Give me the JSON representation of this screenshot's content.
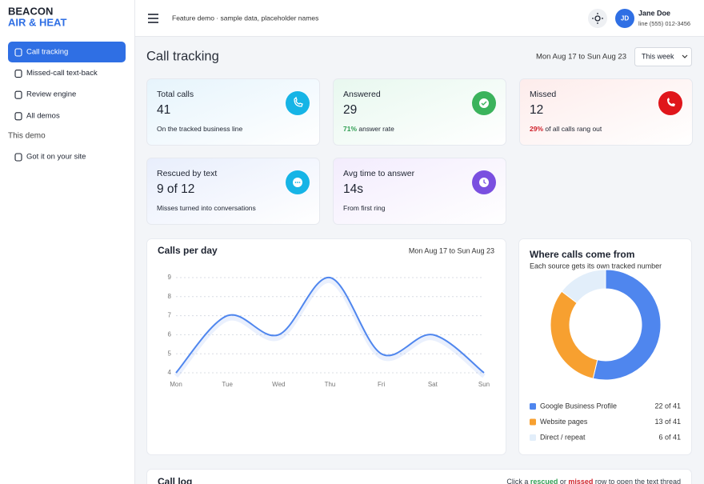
{
  "brand": {
    "line1": "BEACON",
    "line2": "AIR & HEAT"
  },
  "nav": [
    {
      "label": "Call tracking",
      "active": true
    },
    {
      "label": "Missed-call text-back",
      "active": false
    },
    {
      "label": "Review engine",
      "active": false
    },
    {
      "label": "All demos",
      "active": false
    }
  ],
  "nav_section": "This demo",
  "nav_section_items": [
    {
      "label": "Got it on your site",
      "active": false
    }
  ],
  "topbar": {
    "note": "Feature demo · sample data, placeholder names",
    "user": {
      "initials": "JD",
      "name": "Jane Doe",
      "line": "line (555) 012-3456"
    }
  },
  "page": {
    "title": "Call tracking",
    "range": "Mon Aug 17 to Sun Aug 23",
    "period": "This week"
  },
  "stats": [
    {
      "label": "Total calls",
      "value": 41,
      "note": "On the tracked business line",
      "color": "#16b4e6",
      "tint": "#e6f4fc"
    },
    {
      "label": "Answered",
      "value": 29,
      "pct": "71%",
      "pct_color": "#2f9e52",
      "note": "answer rate",
      "color": "#3bb35c",
      "tint": "#e8f8ef"
    },
    {
      "label": "Missed",
      "value": 12,
      "pct": "29%",
      "pct_color": "#d0202a",
      "note": "of all calls rang out",
      "color": "#e0161b",
      "tint": "#fdeceb"
    },
    {
      "label": "Rescued by text",
      "value": "9 of 12",
      "note": "Misses turned into conversations",
      "color": "#16b4e6",
      "tint": "#e8eefc"
    },
    {
      "label": "Avg time to answer",
      "value": "14s",
      "note": "From first ring",
      "color": "#7a4fe0",
      "tint": "#f3ecfd"
    }
  ],
  "chart_data": [
    {
      "type": "line",
      "title": "Calls per day",
      "subtitle": "Mon Aug 17 to Sun Aug 23",
      "categories": [
        "Mon",
        "Tue",
        "Wed",
        "Thu",
        "Fri",
        "Sat",
        "Sun"
      ],
      "values": [
        4,
        7,
        6,
        9,
        5,
        6,
        4
      ],
      "color": "#4f86ee",
      "ylim": [
        4,
        9
      ],
      "yticks": [
        4,
        5,
        6,
        7,
        8,
        9
      ],
      "grid": true
    },
    {
      "type": "donut",
      "title": "Where calls come from",
      "subtitle": "Each source gets its own tracked number",
      "categories": [
        "Google Business Profile",
        "Website pages",
        "Direct / repeat"
      ],
      "values": [
        22,
        13,
        6
      ],
      "value_labels": [
        "22 of 41",
        "13 of 41",
        "6 of 41"
      ],
      "colors": [
        "#4f86ee",
        "#f7a030",
        "#e2eefa"
      ]
    }
  ],
  "call_log": {
    "title": "Call log",
    "hint": [
      {
        "text": "Click a ",
        "color": "#333a45",
        "bold": false
      },
      {
        "text": "rescued",
        "color": "#2f9e52",
        "bold": true
      },
      {
        "text": " or ",
        "color": "#333a45",
        "bold": false
      },
      {
        "text": "missed",
        "color": "#d0202a",
        "bold": true
      },
      {
        "text": " row to open the text thread",
        "color": "#333a45",
        "bold": false
      }
    ]
  }
}
